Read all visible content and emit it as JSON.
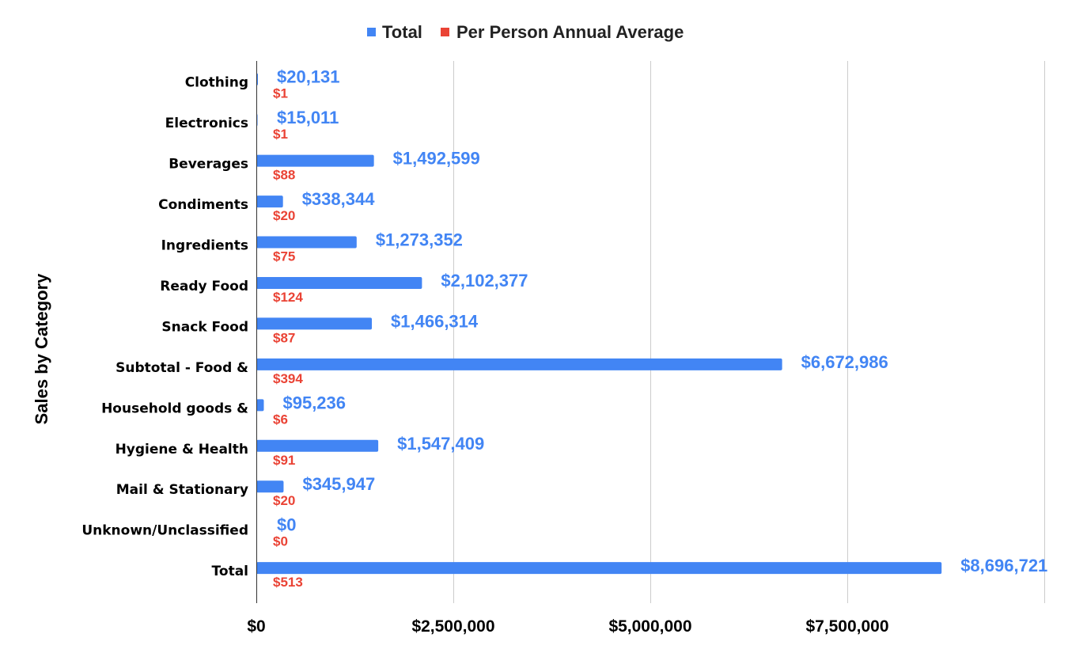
{
  "chart_data": {
    "type": "bar",
    "orientation": "horizontal",
    "title": "",
    "xlabel": "",
    "ylabel": "Sales by Category",
    "categories": [
      "Clothing",
      "Electronics",
      "Beverages",
      "Condiments",
      "Ingredients",
      "Ready Food",
      "Snack Food",
      "Subtotal - Food &",
      "Household goods &",
      "Hygiene & Health",
      "Mail & Stationary",
      "Unknown/Unclassified",
      "Total"
    ],
    "series": [
      {
        "name": "Total",
        "color": "#4285f4",
        "values": [
          20131,
          15011,
          1492599,
          338344,
          1273352,
          2102377,
          1466314,
          6672986,
          95236,
          1547409,
          345947,
          0,
          8696721
        ],
        "labels": [
          "$20,131",
          "$15,011",
          "$1,492,599",
          "$338,344",
          "$1,273,352",
          "$2,102,377",
          "$1,466,314",
          "$6,672,986",
          "$95,236",
          "$1,547,409",
          "$345,947",
          "$0",
          "$8,696,721"
        ]
      },
      {
        "name": "Per Person Annual Average",
        "color": "#ea4335",
        "values": [
          1,
          1,
          88,
          20,
          75,
          124,
          87,
          394,
          6,
          91,
          20,
          0,
          513
        ],
        "labels": [
          "$1",
          "$1",
          "$88",
          "$20",
          "$75",
          "$124",
          "$87",
          "$394",
          "$6",
          "$91",
          "$20",
          "$0",
          "$513"
        ]
      }
    ],
    "xlim": [
      0,
      10000000
    ],
    "xticks": [
      0,
      2500000,
      5000000,
      7500000
    ],
    "xtick_labels": [
      "$0",
      "$2,500,000",
      "$5,000,000",
      "$7,500,000"
    ],
    "grid": true,
    "legend_position": "top-center"
  }
}
